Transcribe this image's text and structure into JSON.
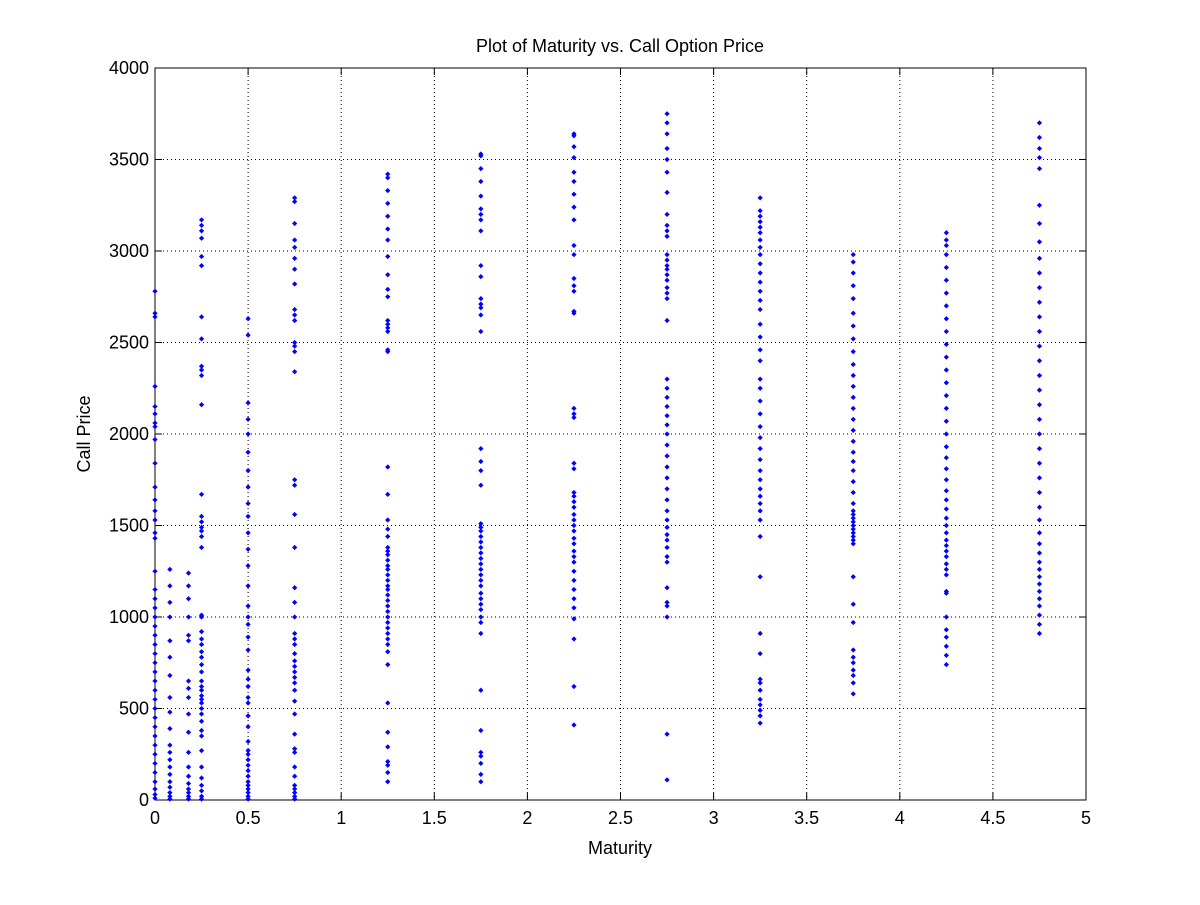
{
  "chart_data": {
    "type": "scatter",
    "title": "Plot of Maturity vs. Call Option Price",
    "xlabel": "Maturity",
    "ylabel": "Call Price",
    "xlim": [
      0,
      5
    ],
    "ylim": [
      0,
      4000
    ],
    "xticks": [
      "0",
      "0.5",
      "1",
      "1.5",
      "2",
      "2.5",
      "3",
      "3.5",
      "4",
      "4.5",
      "5"
    ],
    "yticks": [
      "0",
      "500",
      "1000",
      "1500",
      "2000",
      "2500",
      "3000",
      "3500",
      "4000"
    ],
    "grid": true,
    "marker_color": "#0000ff",
    "points_note": "Dense vertical clusters at discrete maturities",
    "series": [
      {
        "columns": [
          {
            "x": 0.0,
            "y": [
              10,
              30,
              60,
              100,
              150,
              200,
              250,
              300,
              350,
              400,
              450,
              500,
              550,
              600,
              650,
              700,
              750,
              800,
              850,
              900,
              950,
              1000,
              1050,
              1100,
              1150,
              1250,
              1430,
              1460,
              1530,
              1580,
              1640,
              1710,
              1840,
              1970,
              2040,
              2060,
              2110,
              2150,
              2260,
              2640,
              2660,
              2780
            ]
          },
          {
            "x": 0.08,
            "y": [
              5,
              20,
              40,
              70,
              100,
              140,
              180,
              220,
              260,
              300,
              390,
              480,
              560,
              680,
              780,
              870,
              1000,
              1080,
              1170,
              1260
            ]
          },
          {
            "x": 0.18,
            "y": [
              5,
              20,
              40,
              60,
              90,
              130,
              180,
              260,
              370,
              470,
              560,
              610,
              650,
              870,
              900,
              1000,
              1100,
              1170,
              1240
            ]
          },
          {
            "x": 0.25,
            "y": [
              5,
              20,
              50,
              80,
              120,
              180,
              270,
              350,
              380,
              430,
              470,
              500,
              530,
              550,
              570,
              600,
              620,
              650,
              700,
              740,
              780,
              810,
              850,
              880,
              920,
              1000,
              1010,
              1380,
              1440,
              1470,
              1490,
              1520,
              1550,
              1670,
              2160,
              2320,
              2350,
              2370,
              2520,
              2640,
              2920,
              2970,
              3070,
              3110,
              3140,
              3170
            ]
          },
          {
            "x": 0.5,
            "y": [
              5,
              20,
              40,
              60,
              80,
              100,
              130,
              160,
              190,
              220,
              250,
              270,
              320,
              400,
              460,
              530,
              560,
              620,
              660,
              710,
              820,
              890,
              960,
              1000,
              1060,
              1170,
              1280,
              1370,
              1460,
              1550,
              1620,
              1710,
              1800,
              1900,
              2000,
              2080,
              2170,
              2540,
              2630
            ]
          },
          {
            "x": 0.75,
            "y": [
              5,
              20,
              40,
              60,
              80,
              130,
              180,
              260,
              280,
              360,
              470,
              540,
              600,
              640,
              670,
              700,
              730,
              760,
              800,
              850,
              880,
              910,
              1000,
              1080,
              1160,
              1380,
              1560,
              1720,
              1750,
              2340,
              2450,
              2480,
              2500,
              2620,
              2650,
              2680,
              2820,
              2900,
              2960,
              3020,
              3060,
              3150,
              3270,
              3290
            ]
          },
          {
            "x": 1.25,
            "y": [
              100,
              150,
              190,
              210,
              290,
              370,
              530,
              740,
              810,
              850,
              880,
              910,
              940,
              970,
              1000,
              1030,
              1060,
              1090,
              1120,
              1150,
              1170,
              1200,
              1230,
              1260,
              1280,
              1310,
              1340,
              1360,
              1380,
              1440,
              1480,
              1530,
              1670,
              1820,
              2450,
              2460,
              2560,
              2580,
              2600,
              2620,
              2750,
              2790,
              2870,
              2970,
              3060,
              3120,
              3190,
              3260,
              3330,
              3400,
              3420
            ]
          },
          {
            "x": 1.75,
            "y": [
              100,
              140,
              200,
              240,
              260,
              380,
              600,
              910,
              970,
              1000,
              1040,
              1070,
              1100,
              1130,
              1170,
              1200,
              1230,
              1260,
              1290,
              1320,
              1350,
              1380,
              1410,
              1440,
              1470,
              1490,
              1510,
              1720,
              1800,
              1850,
              1920,
              2560,
              2650,
              2690,
              2710,
              2740,
              2860,
              2920,
              3110,
              3170,
              3200,
              3230,
              3300,
              3380,
              3450,
              3520,
              3530
            ]
          },
          {
            "x": 2.25,
            "y": [
              410,
              620,
              880,
              990,
              1050,
              1100,
              1150,
              1200,
              1250,
              1300,
              1330,
              1360,
              1400,
              1430,
              1470,
              1500,
              1530,
              1560,
              1600,
              1630,
              1660,
              1680,
              1810,
              1840,
              2090,
              2110,
              2140,
              2660,
              2670,
              2780,
              2810,
              2850,
              2980,
              3030,
              3170,
              3240,
              3310,
              3380,
              3430,
              3510,
              3570,
              3630,
              3640
            ]
          },
          {
            "x": 2.75,
            "y": [
              110,
              360,
              1000,
              1060,
              1080,
              1160,
              1300,
              1330,
              1380,
              1420,
              1450,
              1490,
              1530,
              1580,
              1640,
              1700,
              1760,
              1820,
              1880,
              1940,
              2000,
              2050,
              2100,
              2150,
              2200,
              2250,
              2300,
              2620,
              2740,
              2770,
              2800,
              2840,
              2870,
              2900,
              2920,
              2950,
              2980,
              3080,
              3110,
              3140,
              3200,
              3320,
              3430,
              3500,
              3560,
              3640,
              3700,
              3750
            ]
          },
          {
            "x": 3.25,
            "y": [
              420,
              460,
              490,
              520,
              550,
              600,
              640,
              660,
              800,
              910,
              1220,
              1440,
              1530,
              1580,
              1620,
              1660,
              1700,
              1750,
              1800,
              1860,
              1920,
              1980,
              2040,
              2110,
              2180,
              2250,
              2300,
              2400,
              2460,
              2530,
              2600,
              2680,
              2730,
              2780,
              2830,
              2880,
              2930,
              2980,
              3020,
              3060,
              3100,
              3130,
              3160,
              3190,
              3220,
              3290
            ]
          },
          {
            "x": 3.75,
            "y": [
              580,
              640,
              680,
              710,
              750,
              780,
              820,
              970,
              1070,
              1220,
              1400,
              1420,
              1440,
              1460,
              1480,
              1500,
              1520,
              1540,
              1560,
              1580,
              1620,
              1680,
              1740,
              1800,
              1850,
              1900,
              1960,
              2020,
              2080,
              2140,
              2200,
              2260,
              2320,
              2380,
              2450,
              2520,
              2590,
              2660,
              2740,
              2810,
              2880,
              2940,
              2980
            ]
          },
          {
            "x": 4.25,
            "y": [
              740,
              790,
              840,
              890,
              930,
              1000,
              1130,
              1140,
              1230,
              1260,
              1290,
              1330,
              1360,
              1390,
              1420,
              1460,
              1500,
              1540,
              1590,
              1640,
              1690,
              1750,
              1810,
              1870,
              1930,
              2000,
              2070,
              2140,
              2210,
              2280,
              2350,
              2420,
              2490,
              2560,
              2630,
              2700,
              2770,
              2840,
              2910,
              2980,
              3030,
              3060,
              3100
            ]
          },
          {
            "x": 4.75,
            "y": [
              910,
              960,
              1010,
              1060,
              1100,
              1140,
              1180,
              1220,
              1260,
              1300,
              1350,
              1400,
              1460,
              1530,
              1600,
              1680,
              1760,
              1840,
              1920,
              2000,
              2080,
              2160,
              2240,
              2320,
              2400,
              2480,
              2560,
              2640,
              2720,
              2800,
              2880,
              2960,
              3050,
              3150,
              3250,
              3450,
              3510,
              3560,
              3620,
              3700
            ]
          }
        ]
      }
    ]
  }
}
